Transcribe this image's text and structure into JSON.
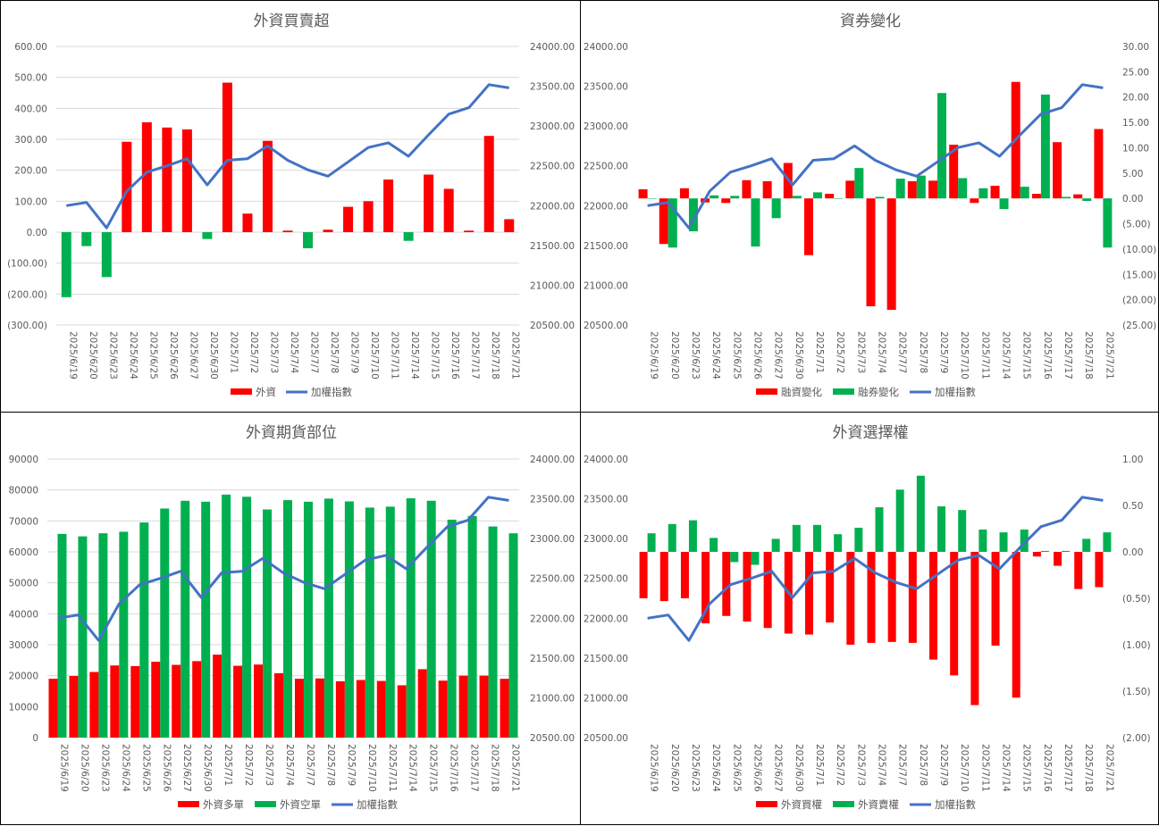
{
  "dates": [
    "2025/6/19",
    "2025/6/20",
    "2025/6/23",
    "2025/6/24",
    "2025/6/25",
    "2025/6/26",
    "2025/6/27",
    "2025/6/30",
    "2025/7/1",
    "2025/7/2",
    "2025/7/3",
    "2025/7/4",
    "2025/7/7",
    "2025/7/8",
    "2025/7/9",
    "2025/7/10",
    "2025/7/11",
    "2025/7/14",
    "2025/7/15",
    "2025/7/16",
    "2025/7/17",
    "2025/7/18",
    "2025/7/21"
  ],
  "colors": {
    "red": "#ff0000",
    "green": "#00b050",
    "blue": "#4472c4",
    "negative_tick": "#ff0000",
    "grid": "#d9d9d9"
  },
  "chart_data": [
    {
      "type": "bar",
      "title": "外資買賣超",
      "left_axis": {
        "min": -300,
        "max": 600,
        "step": 100,
        "ticks": [
          "(300.00)",
          "(200.00)",
          "(100.00)",
          "0.00",
          "100.00",
          "200.00",
          "300.00",
          "400.00",
          "500.00",
          "600.00"
        ]
      },
      "right_axis": {
        "min": 20500,
        "max": 24000,
        "step": 500,
        "ticks": [
          "20500.00",
          "21000.00",
          "21500.00",
          "22000.00",
          "22500.00",
          "23000.00",
          "23500.00",
          "24000.00"
        ]
      },
      "grid": true,
      "legend_position": "bottom",
      "series": [
        {
          "name": "外資",
          "type": "bar",
          "axis": "left",
          "color_rule": "sign",
          "values": [
            -210,
            -45,
            -145,
            292,
            355,
            338,
            332,
            -22,
            483,
            60,
            295,
            5,
            -52,
            8,
            82,
            100,
            170,
            -28,
            186,
            140,
            5,
            311,
            42
          ]
        },
        {
          "name": "加權指數",
          "type": "line",
          "axis": "right",
          "color": "#4472c4",
          "values": [
            22000,
            22040,
            21720,
            22180,
            22420,
            22500,
            22590,
            22260,
            22570,
            22590,
            22750,
            22570,
            22450,
            22370,
            22550,
            22730,
            22790,
            22620,
            22890,
            23150,
            23230,
            23520,
            23480
          ]
        }
      ],
      "legend": [
        {
          "label": "外資",
          "kind": "bar",
          "color": "#ff0000"
        },
        {
          "label": "加權指數",
          "kind": "line",
          "color": "#4472c4"
        }
      ]
    },
    {
      "type": "bar",
      "title": "資券變化",
      "left_axis": {
        "min": 20500,
        "max": 24000,
        "step": 500,
        "ticks": [
          "20500.00",
          "21000.00",
          "21500.00",
          "22000.00",
          "22500.00",
          "23000.00",
          "23500.00",
          "24000.00"
        ]
      },
      "right_axis": {
        "min": -25,
        "max": 30,
        "step": 5,
        "ticks": [
          "(25.00)",
          "(20.00)",
          "(15.00)",
          "(10.00)",
          "(5.00)",
          "0.00",
          "5.00",
          "10.00",
          "15.00",
          "20.00",
          "25.00",
          "30.00"
        ]
      },
      "grid": false,
      "legend_position": "bottom",
      "series": [
        {
          "name": "融資變化",
          "type": "bar",
          "axis": "right",
          "color": "#ff0000",
          "values": [
            1.8,
            -9,
            2,
            -0.8,
            -0.9,
            3.6,
            3.4,
            7,
            -11.2,
            0.9,
            3.5,
            -21.3,
            -22,
            3.4,
            3.5,
            10.6,
            -0.9,
            2.5,
            23,
            0.9,
            11.1,
            0.8,
            13.7
          ]
        },
        {
          "name": "融券變化",
          "type": "bar",
          "axis": "right",
          "color": "#00b050",
          "values": [
            0,
            -9.7,
            -6.5,
            0.6,
            0.5,
            -9.5,
            -3.9,
            0.5,
            1.2,
            0,
            6,
            0.3,
            3.9,
            4.5,
            20.8,
            4,
            2,
            -2.1,
            2.3,
            20.5,
            0.3,
            -0.5,
            -9.7
          ]
        },
        {
          "name": "加權指數",
          "type": "line",
          "axis": "left",
          "color": "#4472c4",
          "values": [
            22000,
            22040,
            21720,
            22180,
            22420,
            22500,
            22590,
            22260,
            22570,
            22590,
            22750,
            22570,
            22450,
            22370,
            22550,
            22730,
            22790,
            22620,
            22890,
            23150,
            23230,
            23520,
            23480
          ]
        }
      ],
      "legend": [
        {
          "label": "融資變化",
          "kind": "bar",
          "color": "#ff0000"
        },
        {
          "label": "融券變化",
          "kind": "bar",
          "color": "#00b050"
        },
        {
          "label": "加權指數",
          "kind": "line",
          "color": "#4472c4"
        }
      ]
    },
    {
      "type": "bar",
      "title": "外資期貨部位",
      "left_axis": {
        "min": 0,
        "max": 90000,
        "step": 10000,
        "ticks": [
          "0",
          "10000",
          "20000",
          "30000",
          "40000",
          "50000",
          "60000",
          "70000",
          "80000",
          "90000"
        ]
      },
      "right_axis": {
        "min": 20500,
        "max": 24000,
        "step": 500,
        "ticks": [
          "20500.00",
          "21000.00",
          "21500.00",
          "22000.00",
          "22500.00",
          "23000.00",
          "23500.00",
          "24000.00"
        ]
      },
      "grid": true,
      "legend_position": "bottom",
      "series": [
        {
          "name": "外資多單",
          "type": "bar",
          "axis": "left",
          "color": "#ff0000",
          "values": [
            19000,
            19900,
            21200,
            23300,
            23100,
            24500,
            23500,
            24700,
            26800,
            23200,
            23600,
            20800,
            19000,
            19100,
            18200,
            18600,
            18300,
            16900,
            22100,
            18400,
            20000,
            20000,
            19000
          ]
        },
        {
          "name": "外資空單",
          "type": "bar",
          "axis": "left",
          "color": "#00b050",
          "values": [
            65800,
            65000,
            66000,
            66500,
            69500,
            74000,
            76500,
            76200,
            78500,
            77800,
            73700,
            76700,
            76200,
            77200,
            76300,
            74300,
            74600,
            77300,
            76500,
            70400,
            71600,
            68200,
            66000
          ]
        },
        {
          "name": "加權指數",
          "type": "line",
          "axis": "right",
          "color": "#4472c4",
          "values": [
            22000,
            22040,
            21720,
            22180,
            22420,
            22500,
            22590,
            22260,
            22570,
            22590,
            22750,
            22570,
            22450,
            22370,
            22550,
            22730,
            22790,
            22620,
            22890,
            23150,
            23230,
            23520,
            23480
          ]
        }
      ],
      "legend": [
        {
          "label": "外資多單",
          "kind": "bar",
          "color": "#ff0000"
        },
        {
          "label": "外資空單",
          "kind": "bar",
          "color": "#00b050"
        },
        {
          "label": "加權指數",
          "kind": "line",
          "color": "#4472c4"
        }
      ]
    },
    {
      "type": "bar",
      "title": "外資選擇權",
      "left_axis": {
        "min": 20500,
        "max": 24000,
        "step": 500,
        "ticks": [
          "20500.00",
          "21000.00",
          "21500.00",
          "22000.00",
          "22500.00",
          "23000.00",
          "23500.00",
          "24000.00"
        ]
      },
      "right_axis": {
        "min": -2,
        "max": 1,
        "step": 0.5,
        "ticks": [
          "(2.00)",
          "(1.50)",
          "(1.00)",
          "(0.50)",
          "0.00",
          "0.50",
          "1.00"
        ]
      },
      "grid": false,
      "legend_position": "bottom",
      "series": [
        {
          "name": "外資買權",
          "type": "bar",
          "axis": "right",
          "color": "#ff0000",
          "values": [
            -0.5,
            -0.53,
            -0.5,
            -0.77,
            -0.69,
            -0.75,
            -0.82,
            -0.88,
            -0.89,
            -0.76,
            -1,
            -0.98,
            -0.97,
            -0.98,
            -1.16,
            -1.33,
            -1.65,
            -1.01,
            -1.57,
            -0.05,
            -0.15,
            -0.4,
            -0.38
          ]
        },
        {
          "name": "外資賣權",
          "type": "bar",
          "axis": "right",
          "color": "#00b050",
          "values": [
            0.2,
            0.3,
            0.34,
            0.15,
            -0.11,
            -0.14,
            0.14,
            0.29,
            0.29,
            0.19,
            0.26,
            0.48,
            0.67,
            0.82,
            0.49,
            0.45,
            0.24,
            0.21,
            0.24,
            0.01,
            0.01,
            0.14,
            0.21
          ]
        },
        {
          "name": "加權指數",
          "type": "line",
          "axis": "left",
          "color": "#4472c4",
          "values": [
            22000,
            22040,
            21720,
            22180,
            22420,
            22500,
            22590,
            22260,
            22570,
            22590,
            22750,
            22570,
            22450,
            22370,
            22550,
            22730,
            22790,
            22620,
            22890,
            23150,
            23230,
            23520,
            23480
          ]
        }
      ],
      "legend": [
        {
          "label": "外資買權",
          "kind": "bar",
          "color": "#ff0000"
        },
        {
          "label": "外資賣權",
          "kind": "bar",
          "color": "#00b050"
        },
        {
          "label": "加權指數",
          "kind": "line",
          "color": "#4472c4"
        }
      ]
    }
  ]
}
